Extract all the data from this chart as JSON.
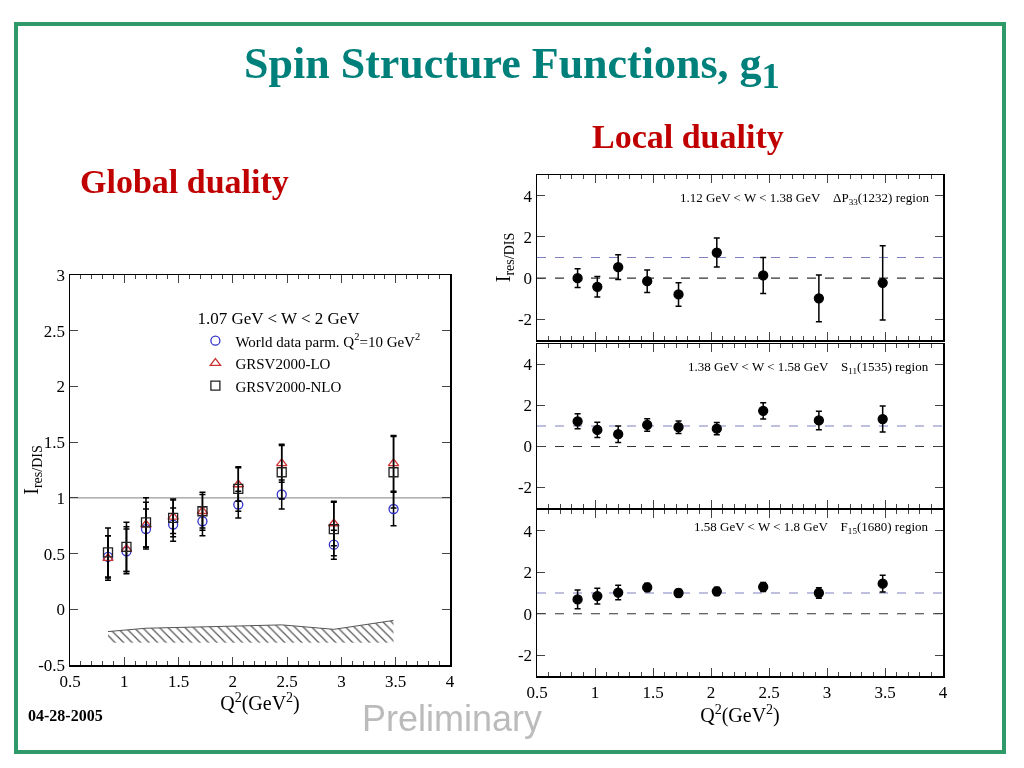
{
  "chart_data": [
    {
      "type": "scatter",
      "title": "Spin Structure Functions, g$_{1}$",
      "subtitle": "Global duality",
      "xlabel": "Q$^{2}$(GeV$^{2}$)",
      "ylabel": "I$_{res/DIS}$",
      "legend_title": "1.07 GeV < W < 2 GeV",
      "legend": "top right",
      "annotations": [
        "04-28-2005"
      ],
      "x": [
        0.85,
        1.02,
        1.2,
        1.45,
        1.72,
        2.05,
        2.45,
        2.93,
        3.48
      ],
      "series": [
        {
          "name": "World data parm. Q$^{2}$=10 GeV$^{2}$",
          "color": "#3333cc",
          "marker": "circle",
          "values": [
            0.47,
            0.52,
            0.72,
            0.76,
            0.79,
            0.94,
            1.03,
            0.58,
            0.9
          ],
          "errors": [
            0.19,
            0.2,
            0.18,
            0.15,
            0.13,
            0.12,
            0.13,
            0.13,
            0.15
          ]
        },
        {
          "name": "GRSV2000-LO",
          "color": "#cc3333",
          "marker": "triangle",
          "values": [
            0.46,
            0.54,
            0.76,
            0.83,
            0.88,
            1.12,
            1.31,
            0.77,
            1.31
          ],
          "errors": [
            0.2,
            0.2,
            0.2,
            0.15,
            0.15,
            0.15,
            0.17,
            0.2,
            0.25
          ]
        },
        {
          "name": "GRSV2000-NLO",
          "color": "#222222",
          "marker": "square",
          "values": [
            0.51,
            0.56,
            0.78,
            0.82,
            0.88,
            1.08,
            1.23,
            0.72,
            1.23
          ],
          "errors": [
            0.22,
            0.22,
            0.22,
            0.17,
            0.17,
            0.2,
            0.24,
            0.24,
            0.32
          ]
        },
        {
          "type": "line",
          "marker": "none",
          "color": "#555555",
          "x": [
            0.85,
            1.2,
            2.05,
            2.45,
            2.93,
            3.48
          ],
          "values": [
            -0.2,
            -0.17,
            -0.15,
            -0.14,
            -0.18,
            -0.1
          ],
          "lower": [
            -0.3,
            -0.3,
            -0.3,
            -0.3,
            -0.3,
            -0.3
          ],
          "upper": [
            -0.2,
            -0.17,
            -0.15,
            -0.14,
            -0.18,
            -0.1
          ]
        }
      ],
      "ref_lines": [
        {
          "axis": "y",
          "value": 1,
          "color": "#999999",
          "line_style": "solid"
        }
      ],
      "xlim": [
        0.5,
        4
      ],
      "xticks": [
        0.5,
        1,
        1.5,
        2,
        2.5,
        3,
        3.5,
        4
      ],
      "ylim": [
        -0.5,
        3
      ],
      "yticks": [
        -0.5,
        0,
        0.5,
        1,
        1.5,
        2,
        2.5,
        3
      ],
      "grid": false
    },
    {
      "type": "scatter",
      "title": "Local duality",
      "ylabel": "I$_{res/DIS}$",
      "annotations": [
        "1.12 GeV < W < 1.38 GeV    ΔP$_{33}$(1232) region"
      ],
      "tick_labels": "y",
      "x": [
        0.85,
        1.02,
        1.2,
        1.45,
        1.72,
        2.05,
        2.45,
        2.93,
        3.48
      ],
      "series": [
        {
          "color": "#000000",
          "marker": "circle",
          "values": [
            0,
            -0.42,
            0.53,
            -0.15,
            -0.79,
            1.24,
            0.13,
            -0.98,
            -0.23
          ],
          "errors": [
            0.45,
            0.5,
            0.6,
            0.55,
            0.57,
            0.7,
            0.87,
            1.13,
            1.8
          ]
        }
      ],
      "ref_lines": [
        {
          "axis": "y",
          "value": 0,
          "color": "#333333",
          "line_style": "dashed"
        },
        {
          "axis": "y",
          "value": 1,
          "color": "#8080c0",
          "line_style": "dashed"
        }
      ],
      "xlim": [
        0.5,
        4
      ],
      "xticks": [
        0.5,
        1,
        1.5,
        2,
        2.5,
        3,
        3.5,
        4
      ],
      "ylim": [
        -3,
        5
      ],
      "yticks": [
        -2,
        0,
        2,
        4
      ],
      "grid": false
    },
    {
      "type": "scatter",
      "annotations": [
        "1.38 GeV < W < 1.58 GeV    S$_{11}$(1535) region"
      ],
      "tick_labels": "y",
      "x": [
        0.85,
        1.02,
        1.2,
        1.45,
        1.72,
        2.05,
        2.45,
        2.93,
        3.48
      ],
      "series": [
        {
          "color": "#000000",
          "marker": "circle",
          "values": [
            1.23,
            0.81,
            0.6,
            1.05,
            0.94,
            0.87,
            1.74,
            1.27,
            1.34
          ],
          "errors": [
            0.37,
            0.37,
            0.4,
            0.3,
            0.3,
            0.3,
            0.4,
            0.45,
            0.63
          ]
        }
      ],
      "ref_lines": [
        {
          "axis": "y",
          "value": 0,
          "color": "#333333",
          "line_style": "dashed"
        },
        {
          "axis": "y",
          "value": 1,
          "color": "#8080c0",
          "line_style": "dashed"
        }
      ],
      "xlim": [
        0.5,
        4
      ],
      "xticks": [
        0.5,
        1,
        1.5,
        2,
        2.5,
        3,
        3.5,
        4
      ],
      "ylim": [
        -3,
        5
      ],
      "yticks": [
        -2,
        0,
        2,
        4
      ],
      "grid": false
    },
    {
      "type": "scatter",
      "xlabel": "Q$^{2}$(GeV$^{2}$)",
      "annotations": [
        "1.58 GeV < W < 1.8 GeV    F$_{15}$(1680) region",
        "Preliminary"
      ],
      "x": [
        0.85,
        1.02,
        1.2,
        1.45,
        1.72,
        2.05,
        2.45,
        2.93,
        3.48
      ],
      "series": [
        {
          "color": "#000000",
          "marker": "circle",
          "values": [
            0.69,
            0.85,
            1.02,
            1.27,
            1.0,
            1.08,
            1.29,
            1.0,
            1.45
          ],
          "errors": [
            0.45,
            0.38,
            0.35,
            0.2,
            0.18,
            0.2,
            0.22,
            0.25,
            0.4
          ]
        }
      ],
      "ref_lines": [
        {
          "axis": "y",
          "value": 0,
          "color": "#333333",
          "line_style": "dashed"
        },
        {
          "axis": "y",
          "value": 1,
          "color": "#8080c0",
          "line_style": "dashed"
        }
      ],
      "xlim": [
        0.5,
        4
      ],
      "xticks": [
        0.5,
        1,
        1.5,
        2,
        2.5,
        3,
        3.5,
        4
      ],
      "ylim": [
        -3,
        5
      ],
      "yticks": [
        -2,
        0,
        2,
        4
      ],
      "grid": false
    }
  ]
}
